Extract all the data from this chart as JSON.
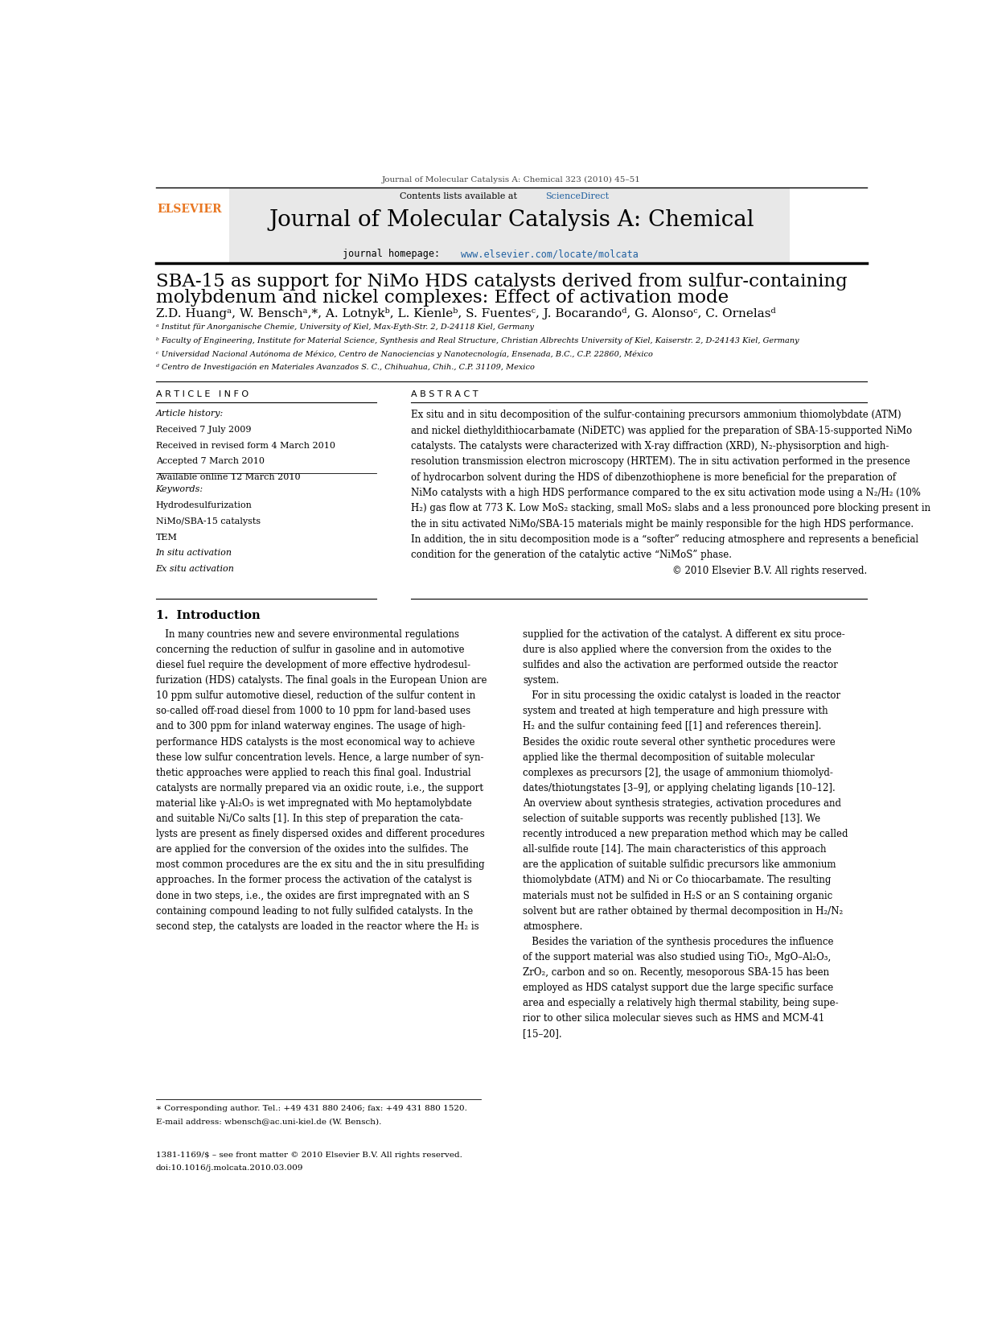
{
  "page_width": 12.41,
  "page_height": 16.54,
  "bg_color": "#ffffff",
  "journal_ref": "Journal of Molecular Catalysis A: Chemical 323 (2010) 45–51",
  "sciencedirect_color": "#2060a0",
  "journal_title": "Journal of Molecular Catalysis A: Chemical",
  "journal_url": "www.elsevier.com/locate/molcata",
  "elsevier_color": "#e87722",
  "article_title_line1": "SBA-15 as support for NiMo HDS catalysts derived from sulfur-containing",
  "article_title_line2": "molybdenum and nickel complexes: Effect of activation mode",
  "authors": "Z.D. Huangᵃ, W. Benschᵃ,*, A. Lotnykᵇ, L. Kienleᵇ, S. Fuentesᶜ, J. Bocarandoᵈ, G. Alonsoᶜ, C. Ornelasᵈ",
  "affil_a": "ᵃ Institut für Anorganische Chemie, University of Kiel, Max-Eyth-Str. 2, D-24118 Kiel, Germany",
  "affil_b": "ᵇ Faculty of Engineering, Institute for Material Science, Synthesis and Real Structure, Christian Albrechts University of Kiel, Kaiserstr. 2, D-24143 Kiel, Germany",
  "affil_c": "ᶜ Universidad Nacional Autónoma de México, Centro de Nanociencias y Nanotecnología, Ensenada, B.C., C.P. 22860, México",
  "affil_d": "ᵈ Centro de Investigación en Materiales Avanzados S. C., Chihuahua, Chih., C.P. 31109, Mexico",
  "article_info_header": "A R T I C L E   I N F O",
  "abstract_header": "A B S T R A C T",
  "article_history_label": "Article history:",
  "received": "Received 7 July 2009",
  "received_revised": "Received in revised form 4 March 2010",
  "accepted": "Accepted 7 March 2010",
  "available": "Available online 12 March 2010",
  "keywords_label": "Keywords:",
  "keyword1": "Hydrodesulfurization",
  "keyword2": "NiMo/SBA-15 catalysts",
  "keyword3": "TEM",
  "keyword4": "In situ activation",
  "keyword5": "Ex situ activation",
  "section1_title": "1.  Introduction",
  "footer_left": "1381-1169/$ – see front matter © 2010 Elsevier B.V. All rights reserved.",
  "footer_doi": "doi:10.1016/j.molcata.2010.03.009",
  "footnote_star": "∗ Corresponding author. Tel.: +49 431 880 2406; fax: +49 431 880 1520.",
  "footnote_email": "E-mail address: wbensch@ac.uni-kiel.de (W. Bensch).",
  "abstract_lines": [
    "Ex situ and in situ decomposition of the sulfur-containing precursors ammonium thiomolybdate (ATM)",
    "and nickel diethyldithiocarbamate (NiDETC) was applied for the preparation of SBA-15-supported NiMo",
    "catalysts. The catalysts were characterized with X-ray diffraction (XRD), N₂-physisorption and high-",
    "resolution transmission electron microscopy (HRTEM). The in situ activation performed in the presence",
    "of hydrocarbon solvent during the HDS of dibenzothiophene is more beneficial for the preparation of",
    "NiMo catalysts with a high HDS performance compared to the ex situ activation mode using a N₂/H₂ (10%",
    "H₂) gas flow at 773 K. Low MoS₂ stacking, small MoS₂ slabs and a less pronounced pore blocking present in",
    "the in situ activated NiMo/SBA-15 materials might be mainly responsible for the high HDS performance.",
    "In addition, the in situ decomposition mode is a “softer” reducing atmosphere and represents a beneficial",
    "condition for the generation of the catalytic active “NiMoS” phase.",
    "© 2010 Elsevier B.V. All rights reserved."
  ],
  "intro_left_lines": [
    "   In many countries new and severe environmental regulations",
    "concerning the reduction of sulfur in gasoline and in automotive",
    "diesel fuel require the development of more effective hydrodesul-",
    "furization (HDS) catalysts. The final goals in the European Union are",
    "10 ppm sulfur automotive diesel, reduction of the sulfur content in",
    "so-called off-road diesel from 1000 to 10 ppm for land-based uses",
    "and to 300 ppm for inland waterway engines. The usage of high-",
    "performance HDS catalysts is the most economical way to achieve",
    "these low sulfur concentration levels. Hence, a large number of syn-",
    "thetic approaches were applied to reach this final goal. Industrial",
    "catalysts are normally prepared via an oxidic route, i.e., the support",
    "material like γ-Al₂O₃ is wet impregnated with Mo heptamolybdate",
    "and suitable Ni/Co salts [1]. In this step of preparation the cata-",
    "lysts are present as finely dispersed oxides and different procedures",
    "are applied for the conversion of the oxides into the sulfides. The",
    "most common procedures are the ex situ and the in situ presulfiding",
    "approaches. In the former process the activation of the catalyst is",
    "done in two steps, i.e., the oxides are first impregnated with an S",
    "containing compound leading to not fully sulfided catalysts. In the",
    "second step, the catalysts are loaded in the reactor where the H₂ is"
  ],
  "intro_right_lines": [
    "supplied for the activation of the catalyst. A different ex situ proce-",
    "dure is also applied where the conversion from the oxides to the",
    "sulfides and also the activation are performed outside the reactor",
    "system.",
    "   For in situ processing the oxidic catalyst is loaded in the reactor",
    "system and treated at high temperature and high pressure with",
    "H₂ and the sulfur containing feed [[1] and references therein].",
    "Besides the oxidic route several other synthetic procedures were",
    "applied like the thermal decomposition of suitable molecular",
    "complexes as precursors [2], the usage of ammonium thiomolyd-",
    "dates/thiotungstates [3–9], or applying chelating ligands [10–12].",
    "An overview about synthesis strategies, activation procedures and",
    "selection of suitable supports was recently published [13]. We",
    "recently introduced a new preparation method which may be called",
    "all-sulfide route [14]. The main characteristics of this approach",
    "are the application of suitable sulfidic precursors like ammonium",
    "thiomolybdate (ATM) and Ni or Co thiocarbamate. The resulting",
    "materials must not be sulfided in H₂S or an S containing organic",
    "solvent but are rather obtained by thermal decomposition in H₂/N₂",
    "atmosphere.",
    "   Besides the variation of the synthesis procedures the influence",
    "of the support material was also studied using TiO₂, MgO–Al₂O₃,",
    "ZrO₂, carbon and so on. Recently, mesoporous SBA-15 has been",
    "employed as HDS catalyst support due the large specific surface",
    "area and especially a relatively high thermal stability, being supe-",
    "rior to other silica molecular sieves such as HMS and MCM-41",
    "[15–20]."
  ]
}
